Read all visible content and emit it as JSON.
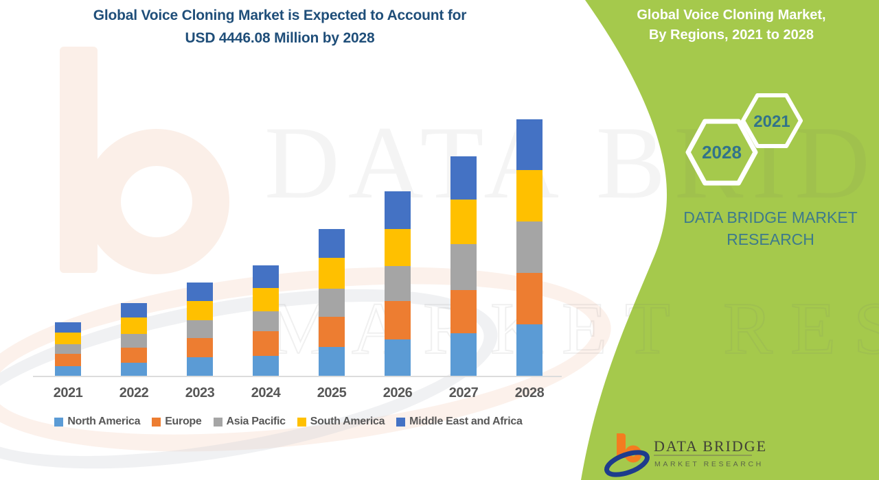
{
  "title": {
    "line1": "Global Voice Cloning Market is Expected to Account for",
    "line2": "USD 4446.08 Million by 2028"
  },
  "side_panel": {
    "heading_line1": "Global Voice Cloning Market,",
    "heading_line2": "By Regions, 2021 to 2028",
    "hexagons": {
      "front_year": "2028",
      "back_year": "2021"
    },
    "brand_line1": "DATA BRIDGE MARKET",
    "brand_line2": "RESEARCH"
  },
  "logo": {
    "brand": "DATA BRIDGE",
    "tagline": "MARKET RESEARCH"
  },
  "watermark": {
    "line1": "DATA BRIDGE",
    "line2": "MARKET RESEARCH"
  },
  "colors": {
    "panel_green": "#A5C94C",
    "title_navy": "#1F4E79",
    "teal_text": "#32738A",
    "axis_line": "#DCDCDC",
    "label_gray": "#575757"
  },
  "chart_data": {
    "type": "bar",
    "stacked": true,
    "title": "Global Voice Cloning Market is Expected to Account for USD 4446.08 Million by 2028",
    "xlabel": "",
    "ylabel": "",
    "ylim": [
      0,
      4500
    ],
    "y_axis_visible": false,
    "grid": false,
    "legend_position": "bottom",
    "units": "USD Million",
    "categories": [
      "2021",
      "2022",
      "2023",
      "2024",
      "2025",
      "2026",
      "2027",
      "2028"
    ],
    "totals": [
      926,
      1259,
      1616,
      1915,
      2537,
      3192,
      3801,
      4446.08
    ],
    "series": [
      {
        "name": "North America",
        "color": "#5B9BD5",
        "values": [
          166,
          220,
          317,
          348,
          502,
          626,
          740,
          891
        ]
      },
      {
        "name": "Europe",
        "color": "#ED7D31",
        "values": [
          214,
          267,
          341,
          428,
          523,
          665,
          745,
          891
        ]
      },
      {
        "name": "Asia Pacific",
        "color": "#A5A5A5",
        "values": [
          166,
          238,
          305,
          336,
          487,
          614,
          792,
          891
        ]
      },
      {
        "name": "South America",
        "color": "#FFC000",
        "values": [
          202,
          285,
          329,
          407,
          526,
          630,
          772,
          891
        ]
      },
      {
        "name": "Middle East and Africa",
        "color": "#4472C4",
        "values": [
          178,
          249,
          324,
          396,
          499,
          657,
          752,
          882.08
        ]
      }
    ]
  }
}
